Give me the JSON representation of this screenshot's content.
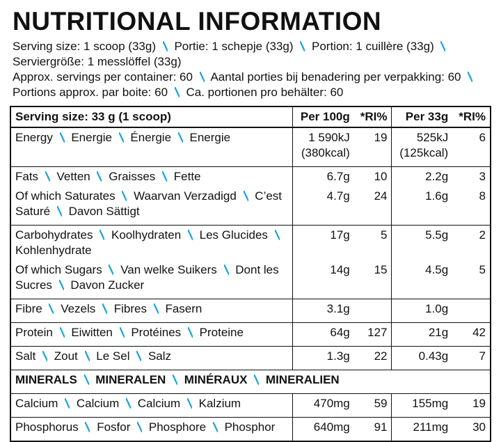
{
  "title": "NUTRITIONAL INFORMATION",
  "intro": [
    [
      "Serving size: 1 scoop (33g)",
      "Portie: 1 schepje (33g)",
      "Portion: 1 cuillère (33g)",
      "Serviergröße: 1 messlöffel (33g)"
    ],
    [
      "Approx. servings per container: 60",
      "Aantal porties bij benadering per verpakking: 60",
      "Portions approx. par boite: 60",
      "Ca. portionen pro behälter: 60"
    ]
  ],
  "table": {
    "columns": [
      "Serving size: 33 g (1 scoop)",
      "Per 100g",
      "*RI%",
      "Per 33g",
      "*RI%"
    ],
    "sections": [
      {
        "rows": [
          {
            "label": [
              "Energy",
              "Energie",
              "Énergie",
              "Energie"
            ],
            "per100": [
              "1 590kJ",
              "(380kcal)"
            ],
            "ri100": 19,
            "per33": [
              "525kJ",
              "(125kcal)"
            ],
            "ri33": 6
          }
        ]
      },
      {
        "rows": [
          {
            "label": [
              "Fats",
              "Vetten",
              "Graisses",
              "Fette"
            ],
            "per100": [
              "6.7g"
            ],
            "ri100": 10,
            "per33": [
              "2.2g"
            ],
            "ri33": 3
          },
          {
            "label": [
              "Of which Saturates",
              "Waarvan Verzadigd",
              "C’est Saturé",
              "Davon Sättigt"
            ],
            "per100": [
              "4.7g"
            ],
            "ri100": 24,
            "per33": [
              "1.6g"
            ],
            "ri33": 8
          }
        ]
      },
      {
        "rows": [
          {
            "label": [
              "Carbohydrates",
              "Koolhydraten",
              "Les Glucides",
              "Kohlenhydrate"
            ],
            "per100": [
              "17g"
            ],
            "ri100": 5,
            "per33": [
              "5.5g"
            ],
            "ri33": 2
          },
          {
            "label": [
              "Of which Sugars",
              "Van welke Suikers",
              "Dont les Sucres",
              "Davon Zucker"
            ],
            "per100": [
              "14g"
            ],
            "ri100": 15,
            "per33": [
              "4.5g"
            ],
            "ri33": 5
          }
        ]
      },
      {
        "rows": [
          {
            "label": [
              "Fibre",
              "Vezels",
              "Fibres",
              "Fasern"
            ],
            "per100": [
              "3.1g"
            ],
            "ri100": null,
            "per33": [
              "1.0g"
            ],
            "ri33": null
          }
        ]
      },
      {
        "rows": [
          {
            "label": [
              "Protein",
              "Eiwitten",
              "Protéines",
              "Proteine"
            ],
            "per100": [
              "64g"
            ],
            "ri100": 127,
            "per33": [
              "21g"
            ],
            "ri33": 42
          }
        ]
      },
      {
        "rows": [
          {
            "label": [
              "Salt",
              "Zout",
              "Le Sel",
              "Salz"
            ],
            "per100": [
              "1.3g"
            ],
            "ri100": 22,
            "per33": [
              "0.43g"
            ],
            "ri33": 7
          }
        ]
      },
      {
        "heading": [
          "MINERALS",
          "MINERALEN",
          "MINÉRAUX",
          "MINERALIEN"
        ]
      },
      {
        "rows": [
          {
            "label": [
              "Calcium",
              "Calcium",
              "Calcium",
              "Kalzium"
            ],
            "per100": [
              "470mg"
            ],
            "ri100": 59,
            "per33": [
              "155mg"
            ],
            "ri33": 19
          }
        ]
      },
      {
        "rows": [
          {
            "label": [
              "Phosphorus",
              "Fosfor",
              "Phosphore",
              "Phosphor"
            ],
            "per100": [
              "640mg"
            ],
            "ri100": 91,
            "per33": [
              "211mg"
            ],
            "ri33": 30
          }
        ]
      }
    ]
  }
}
